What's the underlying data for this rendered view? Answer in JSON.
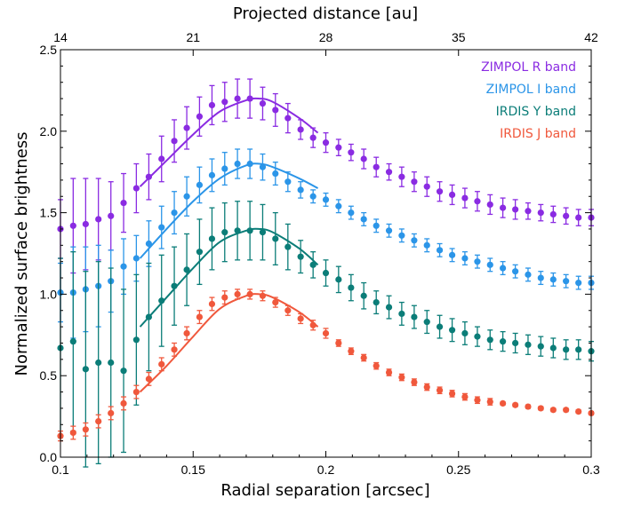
{
  "chart_data": {
    "type": "scatter",
    "xlabel": "Radial separation [arcsec]",
    "ylabel": "Normalized surface brightness",
    "top_xlabel": "Projected distance [au]",
    "xlim": [
      0.1,
      0.3
    ],
    "ylim": [
      0.0,
      2.5
    ],
    "xticks": [
      0.1,
      0.15,
      0.2,
      0.25,
      0.3
    ],
    "xtick_labels": [
      "0.1",
      "0.15",
      "0.2",
      "0.25",
      "0.3"
    ],
    "yticks": [
      0.0,
      0.5,
      1.0,
      1.5,
      2.0,
      2.5
    ],
    "ytick_labels": [
      "0.0",
      "0.5",
      "1.0",
      "1.5",
      "2.0",
      "2.5"
    ],
    "top_xticks": [
      14,
      21,
      28,
      35,
      42
    ],
    "top_xtick_labels": [
      "14",
      "21",
      "28",
      "35",
      "42"
    ],
    "top_xtick_positions": [
      0.1,
      0.15,
      0.2,
      0.25,
      0.3
    ],
    "grid": false,
    "legend_position": "top-right",
    "x": [
      0.1,
      0.1048,
      0.1095,
      0.1143,
      0.119,
      0.1238,
      0.1286,
      0.1333,
      0.1381,
      0.1429,
      0.1476,
      0.1524,
      0.1571,
      0.1619,
      0.1667,
      0.1714,
      0.1762,
      0.181,
      0.1857,
      0.1905,
      0.1952,
      0.2,
      0.2048,
      0.2095,
      0.2143,
      0.219,
      0.2238,
      0.2286,
      0.2333,
      0.2381,
      0.2429,
      0.2476,
      0.2524,
      0.2571,
      0.2619,
      0.2667,
      0.2714,
      0.2762,
      0.281,
      0.2857,
      0.2905,
      0.2952,
      0.3
    ],
    "series": [
      {
        "name": "ZIMPOL R band",
        "color": "#8a2be2",
        "values": [
          1.4,
          1.42,
          1.43,
          1.46,
          1.48,
          1.56,
          1.65,
          1.72,
          1.83,
          1.94,
          2.02,
          2.09,
          2.16,
          2.18,
          2.2,
          2.2,
          2.17,
          2.13,
          2.08,
          2.01,
          1.96,
          1.93,
          1.9,
          1.87,
          1.83,
          1.78,
          1.75,
          1.72,
          1.69,
          1.66,
          1.63,
          1.61,
          1.59,
          1.57,
          1.55,
          1.53,
          1.52,
          1.51,
          1.5,
          1.49,
          1.48,
          1.47,
          1.47
        ],
        "errors": [
          0.18,
          0.29,
          0.28,
          0.25,
          0.21,
          0.18,
          0.15,
          0.14,
          0.14,
          0.13,
          0.13,
          0.12,
          0.12,
          0.12,
          0.12,
          0.12,
          0.1,
          0.1,
          0.09,
          0.06,
          0.06,
          0.06,
          0.05,
          0.05,
          0.06,
          0.06,
          0.05,
          0.06,
          0.06,
          0.06,
          0.06,
          0.06,
          0.06,
          0.06,
          0.06,
          0.06,
          0.06,
          0.05,
          0.05,
          0.05,
          0.05,
          0.05,
          0.05
        ],
        "fit": [
          [
            0.13,
            1.66
          ],
          [
            0.14,
            1.82
          ],
          [
            0.15,
            1.98
          ],
          [
            0.16,
            2.12
          ],
          [
            0.17,
            2.19
          ],
          [
            0.175,
            2.2
          ],
          [
            0.18,
            2.18
          ],
          [
            0.19,
            2.08
          ],
          [
            0.197,
            1.99
          ]
        ]
      },
      {
        "name": "ZIMPOL I band",
        "color": "#2b95e8",
        "values": [
          1.01,
          1.01,
          1.03,
          1.05,
          1.08,
          1.17,
          1.22,
          1.31,
          1.41,
          1.5,
          1.6,
          1.67,
          1.73,
          1.77,
          1.8,
          1.8,
          1.78,
          1.74,
          1.69,
          1.64,
          1.6,
          1.58,
          1.54,
          1.5,
          1.46,
          1.42,
          1.39,
          1.36,
          1.33,
          1.3,
          1.27,
          1.24,
          1.22,
          1.2,
          1.18,
          1.16,
          1.14,
          1.12,
          1.1,
          1.09,
          1.08,
          1.07,
          1.07
        ],
        "errors": [
          0.18,
          0.28,
          0.26,
          0.25,
          0.19,
          0.17,
          0.14,
          0.14,
          0.13,
          0.13,
          0.12,
          0.11,
          0.1,
          0.1,
          0.09,
          0.09,
          0.08,
          0.07,
          0.06,
          0.05,
          0.04,
          0.04,
          0.04,
          0.04,
          0.04,
          0.04,
          0.04,
          0.04,
          0.04,
          0.04,
          0.04,
          0.04,
          0.04,
          0.04,
          0.04,
          0.04,
          0.04,
          0.04,
          0.04,
          0.04,
          0.04,
          0.04,
          0.04
        ],
        "fit": [
          [
            0.13,
            1.22
          ],
          [
            0.14,
            1.4
          ],
          [
            0.15,
            1.57
          ],
          [
            0.16,
            1.71
          ],
          [
            0.17,
            1.79
          ],
          [
            0.175,
            1.8
          ],
          [
            0.18,
            1.78
          ],
          [
            0.19,
            1.71
          ],
          [
            0.197,
            1.65
          ]
        ]
      },
      {
        "name": "IRDIS Y band",
        "color": "#0b7d78",
        "values": [
          0.67,
          0.71,
          0.54,
          0.58,
          0.58,
          0.53,
          0.72,
          0.86,
          0.96,
          1.05,
          1.15,
          1.26,
          1.34,
          1.38,
          1.39,
          1.39,
          1.38,
          1.34,
          1.29,
          1.23,
          1.18,
          1.13,
          1.09,
          1.04,
          0.99,
          0.95,
          0.92,
          0.88,
          0.86,
          0.83,
          0.8,
          0.78,
          0.76,
          0.74,
          0.72,
          0.71,
          0.7,
          0.69,
          0.68,
          0.67,
          0.66,
          0.66,
          0.65
        ],
        "errors": [
          0.55,
          0.55,
          0.6,
          0.62,
          0.58,
          0.5,
          0.4,
          0.33,
          0.28,
          0.24,
          0.22,
          0.2,
          0.19,
          0.18,
          0.18,
          0.18,
          0.17,
          0.16,
          0.14,
          0.1,
          0.08,
          0.08,
          0.08,
          0.08,
          0.08,
          0.07,
          0.07,
          0.07,
          0.07,
          0.07,
          0.07,
          0.07,
          0.07,
          0.06,
          0.06,
          0.06,
          0.06,
          0.06,
          0.06,
          0.06,
          0.06,
          0.06,
          0.06
        ],
        "fit": [
          [
            0.13,
            0.8
          ],
          [
            0.14,
            0.98
          ],
          [
            0.15,
            1.16
          ],
          [
            0.16,
            1.32
          ],
          [
            0.17,
            1.39
          ],
          [
            0.175,
            1.4
          ],
          [
            0.18,
            1.38
          ],
          [
            0.19,
            1.28
          ],
          [
            0.197,
            1.18
          ]
        ]
      },
      {
        "name": "IRDIS J band",
        "color": "#f0583c",
        "values": [
          0.13,
          0.15,
          0.17,
          0.22,
          0.27,
          0.33,
          0.4,
          0.48,
          0.57,
          0.66,
          0.76,
          0.86,
          0.94,
          0.98,
          1.0,
          1.0,
          0.99,
          0.95,
          0.9,
          0.85,
          0.81,
          0.76,
          0.7,
          0.65,
          0.61,
          0.56,
          0.52,
          0.49,
          0.46,
          0.43,
          0.41,
          0.39,
          0.37,
          0.35,
          0.34,
          0.33,
          0.32,
          0.31,
          0.3,
          0.29,
          0.29,
          0.28,
          0.27
        ],
        "errors": [
          0.03,
          0.04,
          0.04,
          0.04,
          0.04,
          0.04,
          0.04,
          0.04,
          0.04,
          0.04,
          0.04,
          0.04,
          0.04,
          0.04,
          0.03,
          0.03,
          0.03,
          0.03,
          0.03,
          0.03,
          0.03,
          0.03,
          0.02,
          0.02,
          0.02,
          0.02,
          0.02,
          0.02,
          0.02,
          0.02,
          0.02,
          0.02,
          0.02,
          0.02,
          0.02,
          0.01,
          0.01,
          0.01,
          0.01,
          0.01,
          0.01,
          0.01,
          0.01
        ],
        "fit": [
          [
            0.13,
            0.4
          ],
          [
            0.14,
            0.56
          ],
          [
            0.15,
            0.74
          ],
          [
            0.16,
            0.91
          ],
          [
            0.17,
            0.99
          ],
          [
            0.175,
            1.0
          ],
          [
            0.18,
            0.98
          ],
          [
            0.19,
            0.89
          ],
          [
            0.197,
            0.8
          ]
        ]
      }
    ]
  }
}
